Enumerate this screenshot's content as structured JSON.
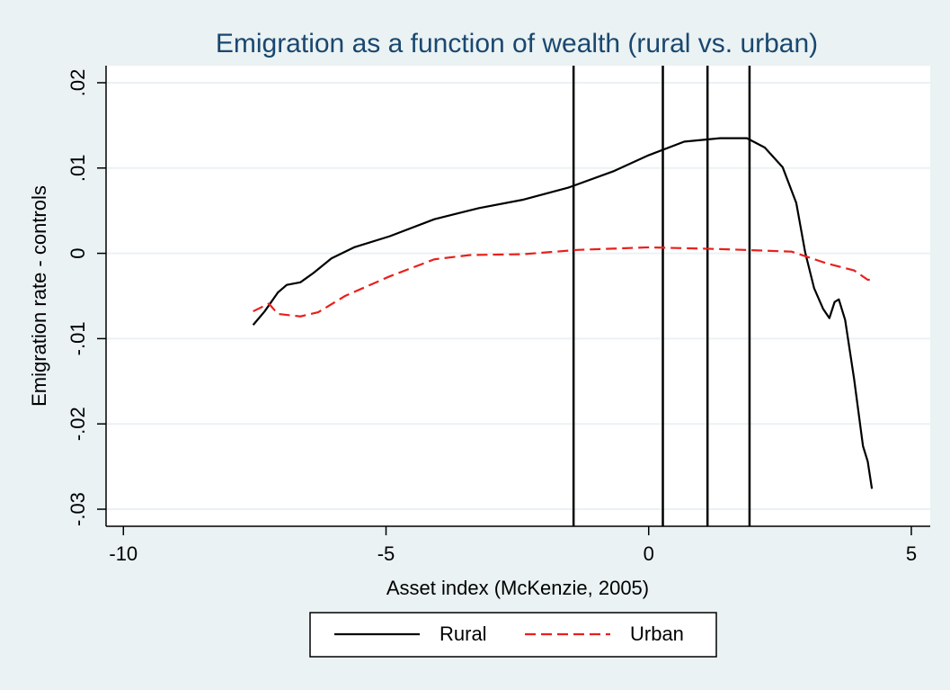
{
  "chart_data": {
    "type": "line",
    "title": "Emigration as a function of wealth (rural vs. urban)",
    "xlabel": "Asset index (McKenzie, 2005)",
    "ylabel": "Emigration rate - controls",
    "xlim": [
      -10.33,
      5.36
    ],
    "xticks": [
      -10,
      -5,
      0,
      5
    ],
    "ylim": [
      -0.032,
      0.022
    ],
    "yticks": [
      {
        "value": 0.02,
        "label": ".02"
      },
      {
        "value": 0.01,
        "label": ".01"
      },
      0,
      {
        "value": -0.01,
        "label": "-.01"
      },
      {
        "value": -0.02,
        "label": "-.02"
      },
      {
        "value": -0.03,
        "label": "-.03"
      }
    ],
    "grid": true,
    "xlines": [
      -1.43,
      0.27,
      1.12,
      1.92
    ],
    "legend": "bottom",
    "series": [
      {
        "name": "Rural",
        "color": "#000000",
        "dash": "solid",
        "x": [
          -7.53,
          -7.31,
          -7.06,
          -6.89,
          -6.63,
          -6.38,
          -6.04,
          -5.61,
          -4.93,
          -4.08,
          -3.23,
          -2.38,
          -1.53,
          -0.68,
          0,
          0.68,
          1.36,
          1.87,
          2.21,
          2.55,
          2.81,
          2.98,
          3.15,
          3.32,
          3.44,
          3.54,
          3.62,
          3.74,
          3.91,
          4.08,
          4.17,
          4.25
        ],
        "values": [
          -0.0084,
          -0.0068,
          -0.0046,
          -0.0037,
          -0.0034,
          -0.0023,
          -0.0006,
          0.0007,
          0.002,
          0.004,
          0.0053,
          0.0063,
          0.0077,
          0.0096,
          0.0115,
          0.0131,
          0.0135,
          0.0135,
          0.0124,
          0.0101,
          0.0059,
          0.0001,
          -0.0041,
          -0.0065,
          -0.0076,
          -0.0057,
          -0.0054,
          -0.0078,
          -0.0147,
          -0.0226,
          -0.0244,
          -0.0276
        ]
      },
      {
        "name": "Urban",
        "color": "#e8201c",
        "dash": "dashed",
        "x": [
          -7.53,
          -7.23,
          -7.06,
          -6.63,
          -6.29,
          -5.78,
          -4.93,
          -4.08,
          -3.4,
          -2.38,
          -1.36,
          0,
          1.36,
          2.72,
          3.4,
          3.91,
          4.17,
          4.29
        ],
        "values": [
          -0.0068,
          -0.0059,
          -0.0071,
          -0.0074,
          -0.0069,
          -0.005,
          -0.0027,
          -0.0007,
          -0.0002,
          -0.0001,
          0.0004,
          0.0007,
          0.0005,
          0.0002,
          -0.0012,
          -0.002,
          -0.0031,
          -0.0031
        ]
      }
    ]
  }
}
